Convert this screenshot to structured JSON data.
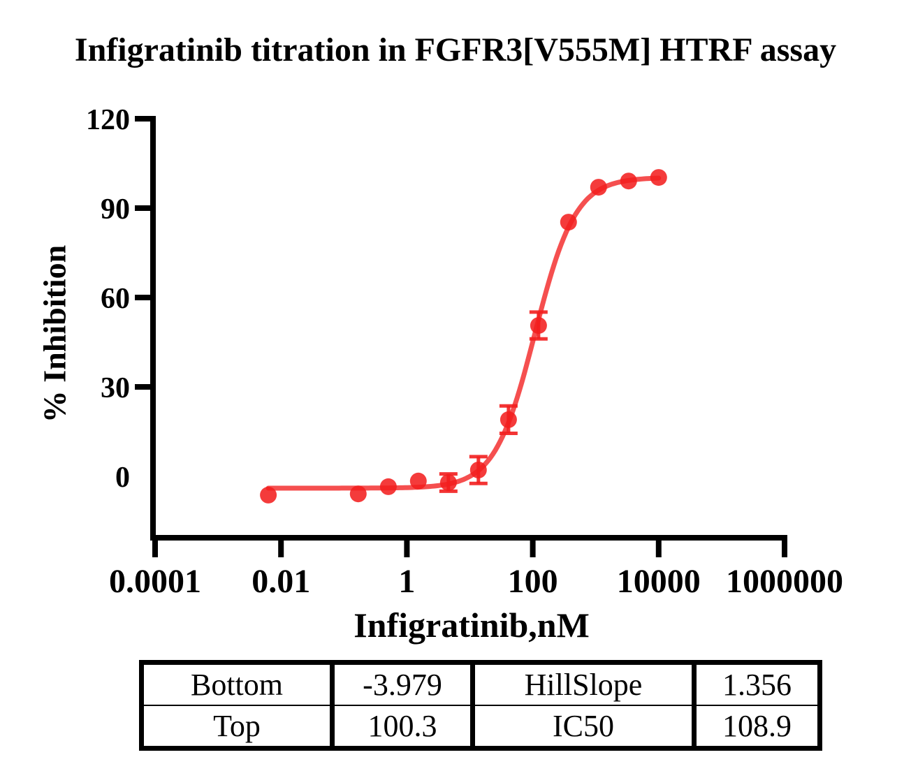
{
  "title": "Infigratinib titration in FGFR3[V555M] HTRF assay",
  "chart_data": {
    "type": "scatter",
    "title": "Infigratinib titration in FGFR3[V555M] HTRF assay",
    "xlabel": "Infigratinib,nM",
    "ylabel": "% Inhibition",
    "x_scale": "log10",
    "x_ticks": [
      0.0001,
      0.01,
      1,
      100,
      10000,
      1000000
    ],
    "x_tick_labels": [
      "0.0001",
      "0.01",
      "1",
      "100",
      "10000",
      "1000000"
    ],
    "y_ticks": [
      0,
      30,
      60,
      90,
      120
    ],
    "y_tick_labels": [
      "0",
      "30",
      "60",
      "90",
      "120"
    ],
    "xlim": [
      0.0001,
      1000000
    ],
    "ylim": [
      -22,
      120
    ],
    "grid": false,
    "legend": "none",
    "series": [
      {
        "name": "Infigratinib",
        "color": "#f21e1e",
        "marker": "circle",
        "x": [
          0.0063,
          0.169,
          0.508,
          1.52,
          4.57,
          13.7,
          41.2,
          123.5,
          370.4,
          1111,
          3333,
          10000
        ],
        "y": [
          -6.3,
          -5.9,
          -3.5,
          -1.6,
          -2.1,
          2.1,
          19.0,
          50.6,
          85.3,
          97.0,
          99.1,
          100.3
        ],
        "y_sem": [
          0,
          0,
          0,
          0,
          2.9,
          4.5,
          4.6,
          4.5,
          0,
          0,
          0,
          0
        ]
      }
    ],
    "fit": {
      "model": "4PL",
      "bottom": -3.979,
      "top": 100.3,
      "hillslope": 1.356,
      "ic50": 108.9
    }
  },
  "fit_table": {
    "rows": [
      {
        "cells": [
          "Bottom",
          "-3.979",
          "HillSlope",
          "1.356"
        ]
      },
      {
        "cells": [
          "Top",
          "100.3",
          "IC50",
          "108.9"
        ]
      }
    ]
  }
}
